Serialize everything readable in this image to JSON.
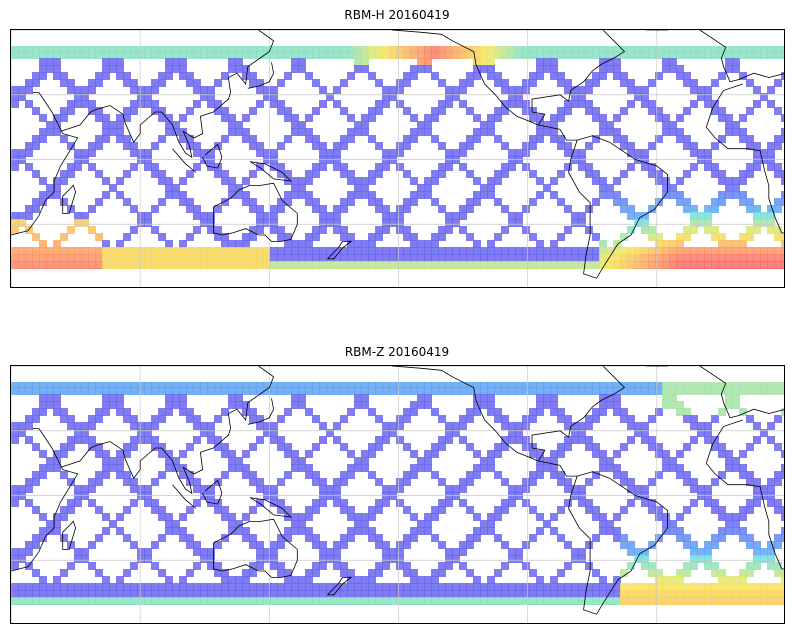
{
  "maps": [
    {
      "id": "rbm-h",
      "title": "RBM-H 20160419",
      "hot_regions": [
        "north-pacific-high-latitudes",
        "south-atlantic-anomaly",
        "southern-ocean"
      ],
      "colors": {
        "low": "#6a66f0",
        "mid": "#55ddf5",
        "high": "#ff6b6b"
      }
    },
    {
      "id": "rbm-z",
      "title": "RBM-Z 20160419",
      "hot_regions": [
        "south-atlantic-anomaly-weak"
      ],
      "colors": {
        "low": "#6a66f0",
        "mid": "#55ddf5",
        "high": "#ffb060"
      }
    }
  ],
  "graticule": {
    "lon_step_deg": 60,
    "lat_step_deg": 30
  },
  "coastline_color": "#000000"
}
